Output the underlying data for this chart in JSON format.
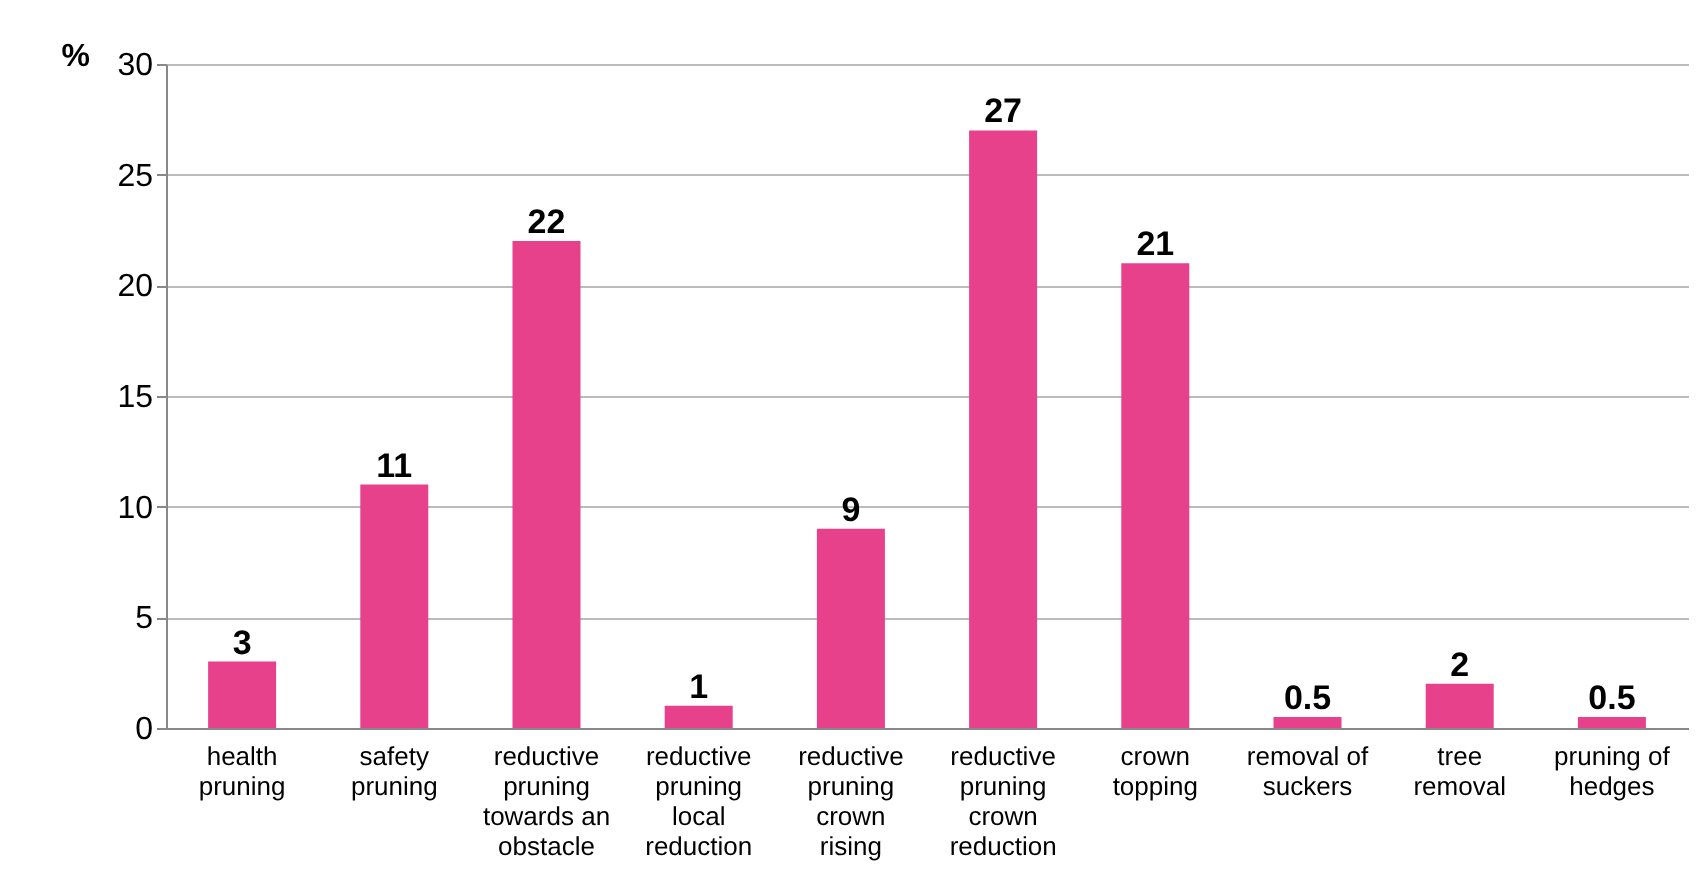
{
  "chart_data": {
    "type": "bar",
    "ylabel": "%",
    "categories": [
      "health pruning",
      "safety pruning",
      "reductive pruning towards an obstacle",
      "reductive pruning local reduction",
      "reductive pruning crown rising",
      "reductive pruning crown reduction",
      "crown topping",
      "removal of suckers",
      "tree removal",
      "pruning of hedges"
    ],
    "values": [
      3,
      11,
      22,
      1,
      9,
      27,
      21,
      0.5,
      2,
      0.5
    ],
    "color": "#e8418c",
    "ylim": [
      0,
      30
    ],
    "yticks": [
      0,
      5,
      10,
      15,
      20,
      25,
      30
    ],
    "grid": "y",
    "data_labels": true
  }
}
